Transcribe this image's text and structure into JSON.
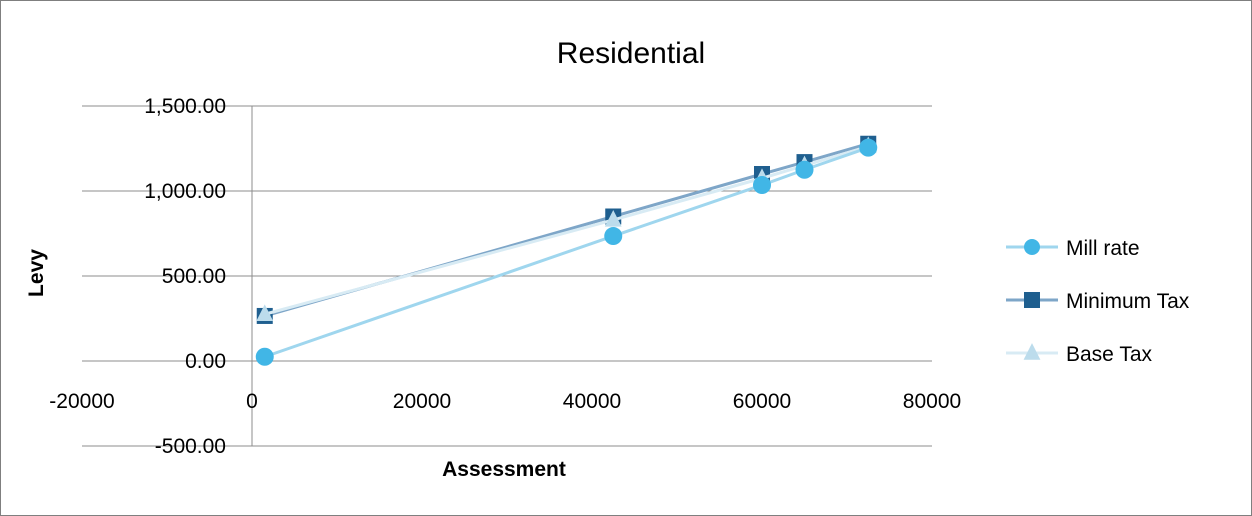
{
  "chart_data": {
    "type": "scatter",
    "title": "Residential",
    "xlabel": "Assessment",
    "ylabel": "Levy",
    "xlim": [
      -20000,
      80000
    ],
    "ylim": [
      -500,
      1500
    ],
    "x_ticks": [
      -20000,
      0,
      20000,
      40000,
      60000,
      80000
    ],
    "x_tick_labels": [
      "-20000",
      "0",
      "20000",
      "40000",
      "60000",
      "80000"
    ],
    "y_ticks": [
      1500,
      1000,
      500,
      0,
      -500
    ],
    "y_tick_labels": [
      "1,500.00",
      "1,000.00",
      "500.00",
      "0.00",
      "-500.00"
    ],
    "grid": "horizontal",
    "legend_position": "right",
    "series": [
      {
        "name": "Mill rate",
        "marker": "circle",
        "color": "#41b6e6",
        "line_color": "#9fd6ee",
        "points": [
          [
            1500,
            25
          ],
          [
            42500,
            735
          ],
          [
            60000,
            1035
          ],
          [
            65000,
            1125
          ],
          [
            72500,
            1255
          ]
        ]
      },
      {
        "name": "Minimum Tax",
        "marker": "square",
        "color": "#1f5f8f",
        "line_color": "#7ea6c8",
        "points": [
          [
            1500,
            265
          ],
          [
            42500,
            850
          ],
          [
            60000,
            1100
          ],
          [
            65000,
            1170
          ],
          [
            72500,
            1278
          ]
        ]
      },
      {
        "name": "Base Tax",
        "marker": "triangle",
        "color": "#bcdcec",
        "line_color": "#d8ebf4",
        "points": [
          [
            1500,
            275
          ],
          [
            42500,
            830
          ],
          [
            60000,
            1075
          ],
          [
            65000,
            1150
          ],
          [
            72500,
            1262
          ]
        ]
      }
    ]
  }
}
